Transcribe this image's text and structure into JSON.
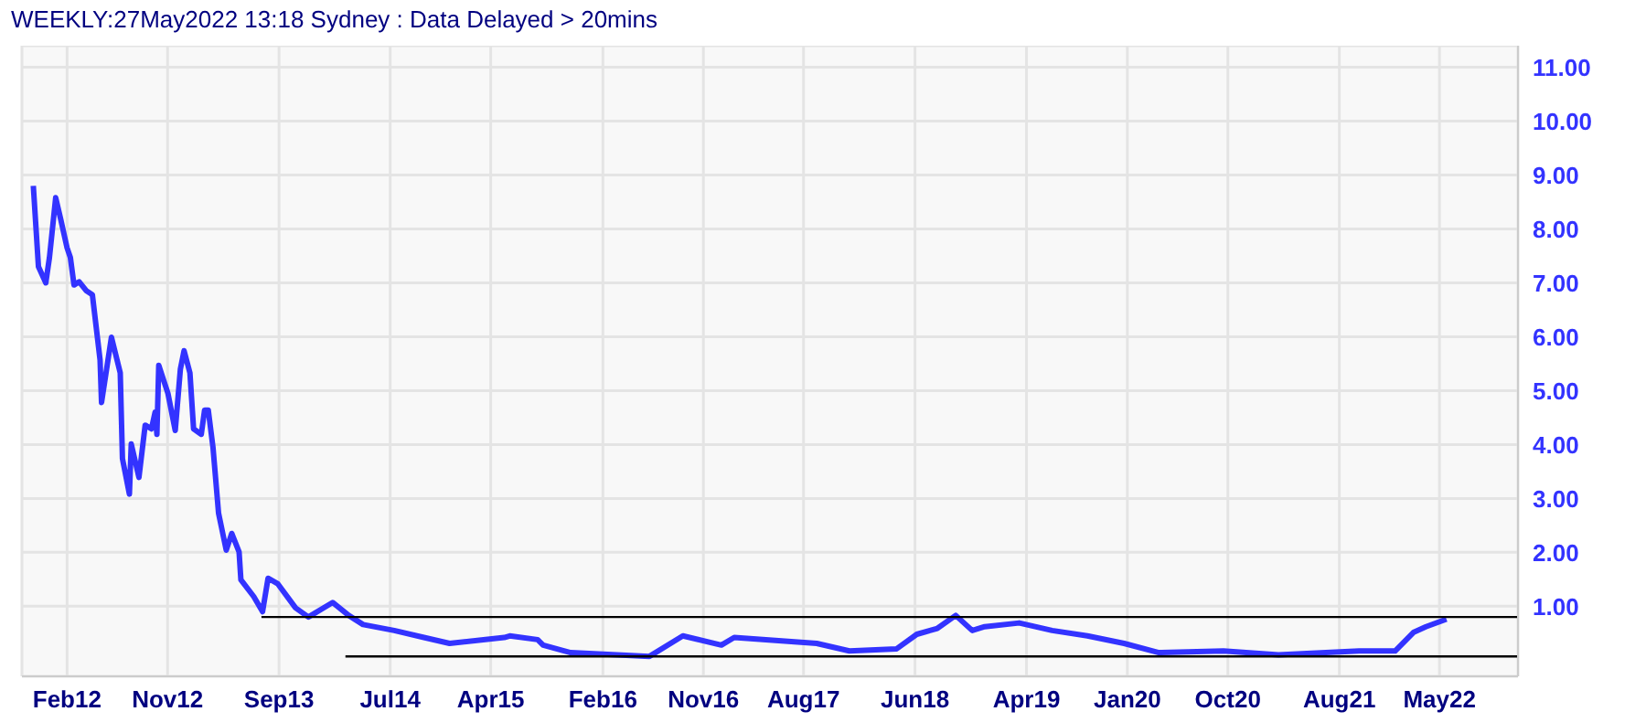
{
  "chart_data": {
    "type": "line",
    "title": "WEEKLY:27May2022 13:18 Sydney : Data Delayed > 20mins",
    "xlim": [
      "2011-10",
      "2022-12"
    ],
    "xticks": [
      {
        "value": "2012-02",
        "label": "Feb12"
      },
      {
        "value": "2012-11",
        "label": "Nov12"
      },
      {
        "value": "2013-09",
        "label": "Sep13"
      },
      {
        "value": "2014-07",
        "label": "Jul14"
      },
      {
        "value": "2015-04",
        "label": "Apr15"
      },
      {
        "value": "2016-02",
        "label": "Feb16"
      },
      {
        "value": "2016-11",
        "label": "Nov16"
      },
      {
        "value": "2017-08",
        "label": "Aug17"
      },
      {
        "value": "2018-06",
        "label": "Jun18"
      },
      {
        "value": "2019-04",
        "label": "Apr19"
      },
      {
        "value": "2020-01",
        "label": "Jan20"
      },
      {
        "value": "2020-10",
        "label": "Oct20"
      },
      {
        "value": "2021-08",
        "label": "Aug21"
      },
      {
        "value": "2022-05",
        "label": "May22"
      }
    ],
    "ylim": [
      -0.3,
      11.4
    ],
    "yticks": [
      {
        "value": 1,
        "label": "1.00"
      },
      {
        "value": 2,
        "label": "2.00"
      },
      {
        "value": 3,
        "label": "3.00"
      },
      {
        "value": 4,
        "label": "4.00"
      },
      {
        "value": 5,
        "label": "5.00"
      },
      {
        "value": 6,
        "label": "6.00"
      },
      {
        "value": 7,
        "label": "7.00"
      },
      {
        "value": 8,
        "label": "8.00"
      },
      {
        "value": 9,
        "label": "9.00"
      },
      {
        "value": 10,
        "label": "10.00"
      },
      {
        "value": 11,
        "label": "11.00"
      }
    ],
    "grid": true,
    "series": [
      {
        "color": "#3333ff",
        "x": [
          "2011-11-01",
          "2011-11-15",
          "2011-12-05",
          "2011-12-15",
          "2012-01-01",
          "2012-01-15",
          "2012-02-01",
          "2012-02-10",
          "2012-02-20",
          "2012-03-05",
          "2012-03-25",
          "2012-04-10",
          "2012-05-01",
          "2012-05-05",
          "2012-06-01",
          "2012-06-25",
          "2012-07-01",
          "2012-07-20",
          "2012-07-25",
          "2012-08-15",
          "2012-09-01",
          "2012-09-18",
          "2012-09-28",
          "2012-10-03",
          "2012-10-08",
          "2012-11-02",
          "2012-11-22",
          "2012-12-06",
          "2012-12-16",
          "2013-01-01",
          "2013-01-11",
          "2013-02-01",
          "2013-02-10",
          "2013-02-20",
          "2013-03-05",
          "2013-03-20",
          "2013-04-10",
          "2013-04-25",
          "2013-05-15",
          "2013-05-20",
          "2013-06-24",
          "2013-07-18",
          "2013-08-02",
          "2013-08-28",
          "2013-10-16",
          "2013-11-20",
          "2014-01-25",
          "2014-03-10",
          "2014-04-18",
          "2014-07-12",
          "2014-10-01",
          "2014-12-10",
          "2015-05-08",
          "2015-05-23",
          "2015-08-07",
          "2015-08-22",
          "2015-11-05",
          "2016-06-07",
          "2016-09-06",
          "2016-12-20",
          "2017-01-24",
          "2017-09-06",
          "2017-12-04",
          "2018-04-12",
          "2018-06-06",
          "2018-08-01",
          "2018-09-20",
          "2018-11-04",
          "2018-12-08",
          "2019-03-12",
          "2019-06-10",
          "2019-09-14",
          "2019-12-23",
          "2020-03-27",
          "2020-09-19",
          "2021-02-16",
          "2021-09-24",
          "2021-12-31",
          "2022-02-20",
          "2022-03-25",
          "2022-05-20"
        ],
        "values": [
          8.8,
          7.3,
          7.0,
          7.47,
          8.58,
          8.17,
          7.65,
          7.47,
          6.96,
          7.02,
          6.85,
          6.78,
          5.57,
          4.78,
          5.99,
          5.33,
          3.74,
          3.08,
          4.01,
          3.39,
          4.36,
          4.29,
          4.6,
          4.19,
          5.47,
          4.95,
          4.26,
          5.4,
          5.74,
          5.33,
          4.29,
          4.19,
          4.64,
          4.64,
          3.94,
          2.73,
          2.04,
          2.35,
          2.01,
          1.49,
          1.18,
          0.9,
          1.52,
          1.42,
          0.97,
          0.8,
          1.07,
          0.83,
          0.66,
          0.55,
          0.42,
          0.31,
          0.42,
          0.45,
          0.38,
          0.28,
          0.14,
          0.07,
          0.45,
          0.28,
          0.42,
          0.31,
          0.17,
          0.21,
          0.48,
          0.59,
          0.83,
          0.55,
          0.62,
          0.69,
          0.55,
          0.45,
          0.31,
          0.14,
          0.17,
          0.1,
          0.17,
          0.17,
          0.52,
          0.62,
          0.76
        ]
      },
      {
        "color": "#000000",
        "x": [
          "2013-07-15",
          "2022-12"
        ],
        "values": [
          0.8,
          0.8
        ]
      },
      {
        "color": "#000000",
        "x": [
          "2014-03-01",
          "2022-12"
        ],
        "values": [
          0.07,
          0.07
        ]
      }
    ]
  }
}
